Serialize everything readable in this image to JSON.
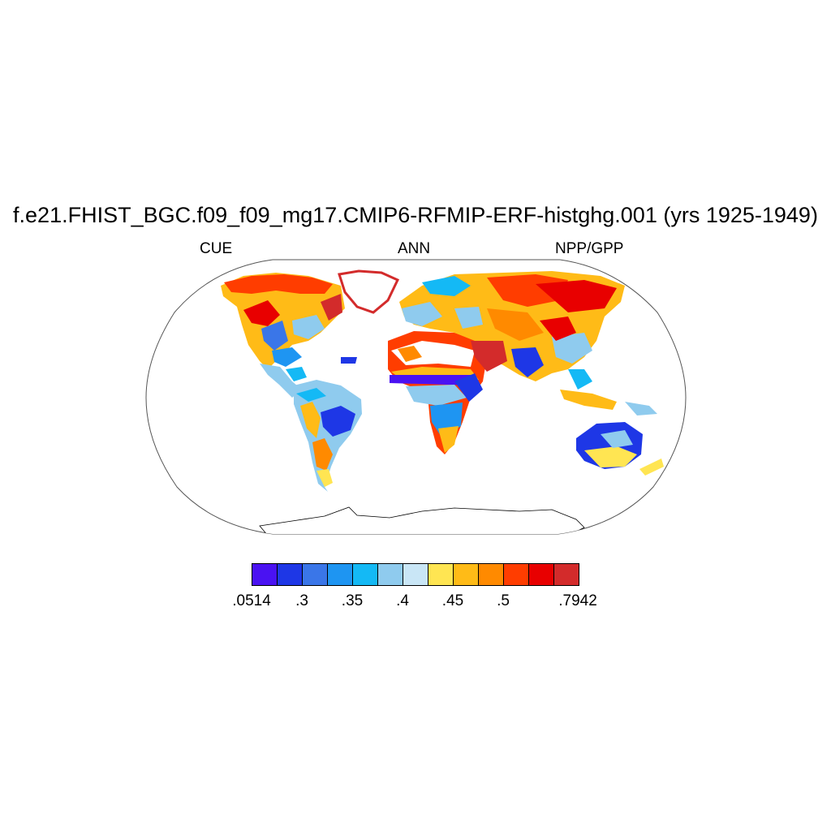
{
  "title": "f.e21.FHIST_BGC.f09_f09_mg17.CMIP6-RFMIP-ERF-histghg.001 (yrs 1925-1949)",
  "subtitle_left": "CUE",
  "subtitle_center": "ANN",
  "subtitle_right": "NPP/GPP",
  "colorbar": {
    "colors": [
      "#4a12f2",
      "#1e37e6",
      "#3a76e8",
      "#1e95f2",
      "#14b9f5",
      "#8fcbee",
      "#c9e6f6",
      "#ffe552",
      "#ffbb17",
      "#ff8a00",
      "#ff3d00",
      "#e80000",
      "#d32b2b"
    ],
    "labels": [
      ".0514",
      ".3",
      ".35",
      ".4",
      ".45",
      ".5",
      ".7942"
    ]
  },
  "map": {
    "projection": "Robinson",
    "ocean_color": "#ffffff",
    "coastline_color": "#000000"
  }
}
